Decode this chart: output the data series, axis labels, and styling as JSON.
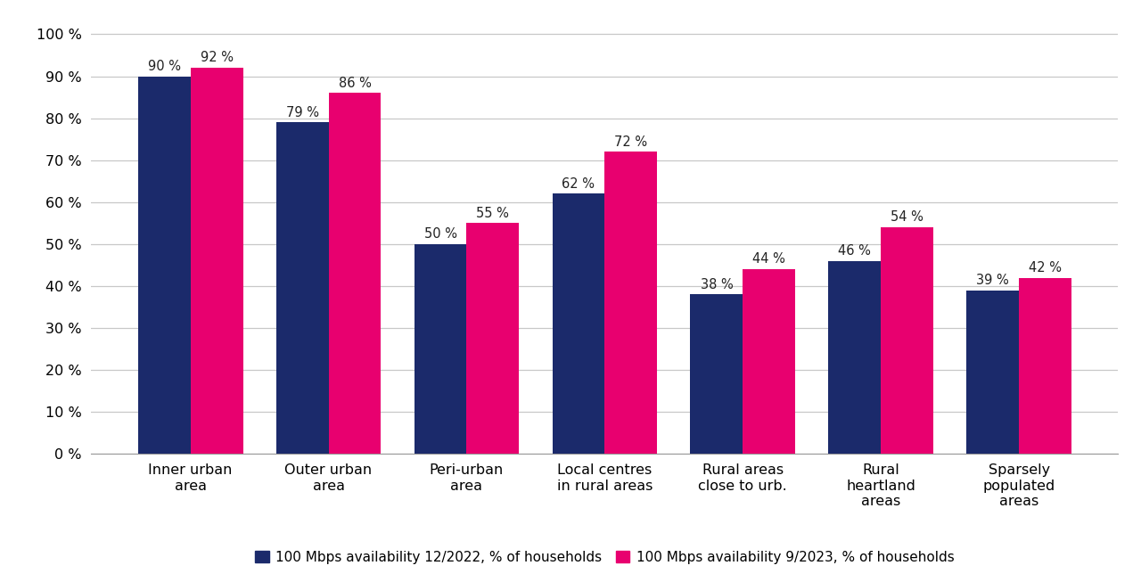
{
  "categories": [
    "Inner urban\narea",
    "Outer urban\narea",
    "Peri-urban\narea",
    "Local centres\nin rural areas",
    "Rural areas\nclose to urb.",
    "Rural\nheartland\nareas",
    "Sparsely\npopulated\nareas"
  ],
  "values_2022": [
    90,
    79,
    50,
    62,
    38,
    46,
    39
  ],
  "values_2023": [
    92,
    86,
    55,
    72,
    44,
    54,
    42
  ],
  "color_2022": "#1b2a6b",
  "color_2023": "#e8006f",
  "legend_2022": "100 Mbps availability 12/2022, % of households",
  "legend_2023": "100 Mbps availability 9/2023, % of households",
  "ylim_max": 100,
  "yticks": [
    0,
    10,
    20,
    30,
    40,
    50,
    60,
    70,
    80,
    90,
    100
  ],
  "ytick_labels": [
    "0 %",
    "10 %",
    "20 %",
    "30 %",
    "40 %",
    "50 %",
    "60 %",
    "70 %",
    "80 %",
    "90 %",
    "100 %"
  ],
  "bar_width": 0.38,
  "background_color": "#ffffff",
  "grid_color": "#c8c8c8",
  "value_fontsize": 10.5,
  "tick_fontsize": 11.5,
  "legend_fontsize": 11
}
